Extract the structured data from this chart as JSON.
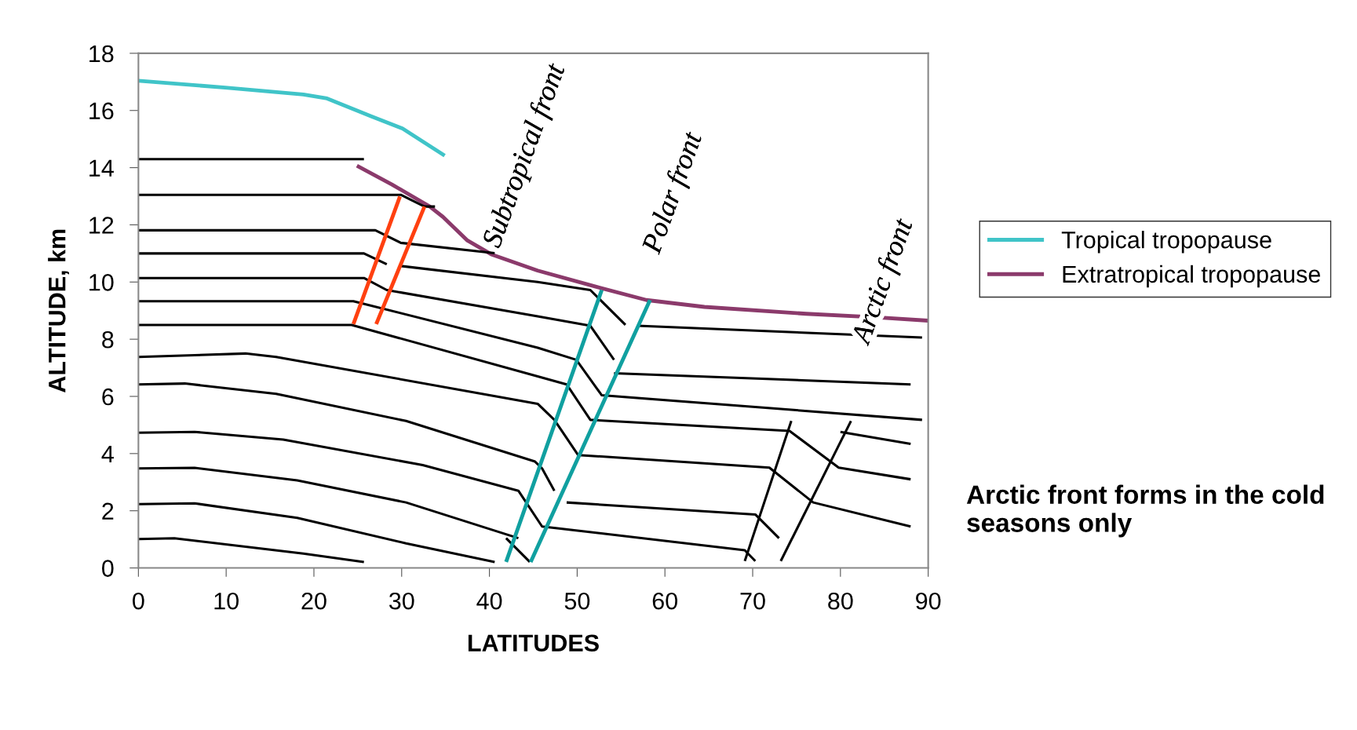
{
  "chart_data": {
    "type": "line",
    "xlabel": "LATITUDES",
    "ylabel": "ALTITUDE, km",
    "xlim": [
      0,
      90
    ],
    "xticks": [
      0,
      10,
      20,
      30,
      40,
      50,
      60,
      70,
      80,
      90
    ],
    "ylim": [
      0,
      18
    ],
    "yticks": [
      0,
      2,
      4,
      6,
      8,
      10,
      12,
      14,
      16,
      18
    ],
    "grid": false,
    "legend": "right",
    "marker": "none",
    "line_style": "solid",
    "series": [
      {
        "name": "Tropical tropopause",
        "color": "#40c4c8",
        "x": [
          0,
          9.9,
          18.8,
          21.5,
          26.6,
          30.1,
          34.9
        ],
        "values": [
          17.04,
          16.8,
          16.56,
          16.42,
          15.79,
          15.37,
          14.42
        ]
      },
      {
        "name": "Extratropical tropopause",
        "color": "#8b3a6b",
        "x": [
          24.9,
          28.9,
          33.2,
          34.7,
          37.5,
          40.2,
          45.5,
          52.1,
          57.9,
          64.5,
          76.1,
          83.9,
          90
        ],
        "values": [
          14.07,
          13.41,
          12.64,
          12.28,
          11.45,
          10.97,
          10.4,
          9.84,
          9.37,
          9.13,
          8.89,
          8.77,
          8.65
        ]
      },
      {
        "color": "#000000",
        "x": [
          0,
          25.7
        ],
        "values": [
          14.3,
          14.3
        ]
      },
      {
        "color": "#000000",
        "x": [
          0,
          29.9,
          32.6,
          33.8
        ],
        "values": [
          13.05,
          13.05,
          12.64,
          12.64
        ]
      },
      {
        "color": "#000000",
        "x": [
          0,
          27.0,
          29.9,
          40.6
        ],
        "values": [
          11.81,
          11.81,
          11.37,
          11.01
        ]
      },
      {
        "color": "#000000",
        "x": [
          0,
          25.7,
          28.3
        ],
        "values": [
          11.0,
          11.0,
          10.62
        ]
      },
      {
        "color": "#000000",
        "x": [
          29.9,
          45.5,
          51.5,
          55.5
        ],
        "values": [
          10.56,
          10.0,
          9.72,
          8.5
        ]
      },
      {
        "color": "#000000",
        "x": [
          0,
          25.7,
          28.3,
          45.5,
          51.5,
          54.2
        ],
        "values": [
          10.14,
          10.14,
          9.72,
          8.8,
          8.47,
          7.28
        ]
      },
      {
        "color": "#000000",
        "x": [
          0,
          24.5,
          45.5,
          49.9,
          52.8,
          89.3
        ],
        "values": [
          9.33,
          9.33,
          7.7,
          7.28,
          6.04,
          5.18
        ]
      },
      {
        "color": "#000000",
        "x": [
          0,
          24.3,
          45.5,
          48.8,
          51.5,
          74.2,
          79.8,
          88.0
        ],
        "values": [
          8.5,
          8.5,
          6.7,
          6.42,
          5.18,
          4.79,
          3.51,
          3.1
        ]
      },
      {
        "color": "#000000",
        "x": [
          56.9,
          89.3
        ],
        "values": [
          8.47,
          8.06
        ]
      },
      {
        "color": "#000000",
        "x": [
          54.2,
          88.0
        ],
        "values": [
          6.81,
          6.42
        ]
      },
      {
        "color": "#000000",
        "x": [
          80.0,
          88.0
        ],
        "values": [
          4.76,
          4.34
        ]
      },
      {
        "color": "#000000",
        "x": [
          0,
          12.2,
          15.7,
          45.5,
          47.4,
          50.1,
          71.9,
          76.9,
          88.0
        ],
        "values": [
          7.38,
          7.5,
          7.38,
          5.74,
          5.18,
          3.95,
          3.51,
          2.29,
          1.45
        ]
      },
      {
        "color": "#000000",
        "x": [
          0,
          5.3,
          15.7,
          30.5,
          45.2,
          46.0,
          47.4
        ],
        "values": [
          6.42,
          6.45,
          6.09,
          5.14,
          3.72,
          3.48,
          2.7
        ]
      },
      {
        "color": "#000000",
        "x": [
          0,
          6.4,
          16.5,
          32.4,
          43.3,
          46.0,
          69.1,
          70.3
        ],
        "values": [
          4.73,
          4.76,
          4.49,
          3.6,
          2.7,
          1.45,
          0.62,
          0.24
        ]
      },
      {
        "color": "#000000",
        "x": [
          48.8,
          70.3,
          73.0
        ],
        "values": [
          2.29,
          1.87,
          1.04
        ]
      },
      {
        "color": "#000000",
        "x": [
          0,
          6.4,
          18.1,
          30.5,
          43.3
        ],
        "values": [
          3.48,
          3.5,
          3.06,
          2.29,
          1.04
        ]
      },
      {
        "color": "#000000",
        "x": [
          41.9,
          44.6
        ],
        "values": [
          1.04,
          0.21
        ]
      },
      {
        "color": "#000000",
        "x": [
          0,
          6.4,
          18.1,
          30.5,
          40.6
        ],
        "values": [
          2.23,
          2.26,
          1.75,
          0.86,
          0.21
        ]
      },
      {
        "color": "#000000",
        "x": [
          0,
          4.1,
          18.8,
          25.7
        ],
        "values": [
          1.01,
          1.04,
          0.5,
          0.21
        ]
      },
      {
        "color": "#ff4010",
        "x": [
          29.8,
          24.5
        ],
        "values": [
          12.99,
          8.53
        ]
      },
      {
        "color": "#ff4010",
        "x": [
          32.6,
          27.1
        ],
        "values": [
          12.64,
          8.53
        ]
      },
      {
        "color": "#10a0a0",
        "x": [
          52.8,
          41.9
        ],
        "values": [
          9.72,
          0.21
        ]
      },
      {
        "color": "#10a0a0",
        "x": [
          58.3,
          44.7
        ],
        "values": [
          9.37,
          0.21
        ]
      },
      {
        "color": "#000000",
        "x": [
          74.4,
          69.1
        ],
        "values": [
          5.14,
          0.24
        ]
      },
      {
        "color": "#000000",
        "x": [
          81.2,
          73.2
        ],
        "values": [
          5.14,
          0.24
        ]
      }
    ],
    "annotations": [
      "Subtropical front",
      "Polar front",
      "Arctic front",
      "Arctic front forms in the cold seasons only"
    ]
  }
}
